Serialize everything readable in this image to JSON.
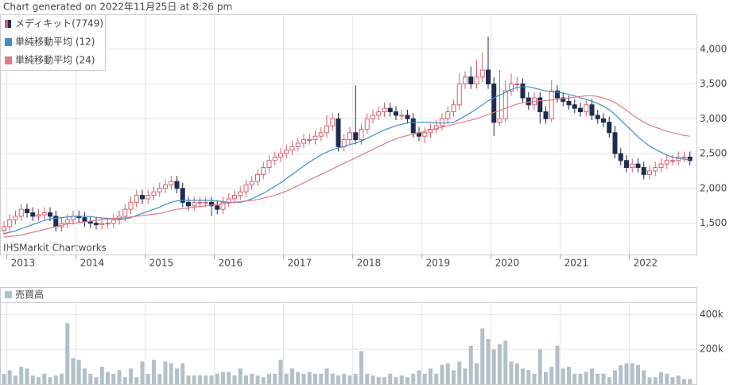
{
  "chart_data": [
    {
      "type": "candlestick",
      "title": "Chart generated on 2022年11月25日 at 8:26 pm",
      "name": "メディキット(7749)",
      "annotation": "IHSMarkit Chartworks",
      "up_color": "#d5606d",
      "down_color": "#1f2c4f",
      "categories": [
        null,
        "2013",
        null,
        null,
        null,
        null,
        null,
        null,
        null,
        null,
        null,
        null,
        null,
        "2014",
        null,
        null,
        null,
        null,
        null,
        null,
        null,
        null,
        null,
        null,
        null,
        "2015",
        null,
        null,
        null,
        null,
        null,
        null,
        null,
        null,
        null,
        null,
        null,
        "2016",
        null,
        null,
        null,
        null,
        null,
        null,
        null,
        null,
        null,
        null,
        null,
        "2017",
        null,
        null,
        null,
        null,
        null,
        null,
        null,
        null,
        null,
        null,
        null,
        "2018",
        null,
        null,
        null,
        null,
        null,
        null,
        null,
        null,
        null,
        null,
        null,
        "2019",
        null,
        null,
        null,
        null,
        null,
        null,
        null,
        null,
        null,
        null,
        null,
        "2020",
        null,
        null,
        null,
        null,
        null,
        null,
        null,
        null,
        null,
        null,
        null,
        "2021",
        null,
        null,
        null,
        null,
        null,
        null,
        null,
        null,
        null,
        null,
        null,
        "2022",
        null,
        null,
        null,
        null,
        null,
        null,
        null,
        null,
        null,
        null
      ],
      "open": [
        1400,
        1450,
        1550,
        1600,
        1700,
        1650,
        1600,
        1620,
        1650,
        1600,
        1450,
        1500,
        1550,
        1600,
        1580,
        1520,
        1500,
        1480,
        1500,
        1500,
        1550,
        1600,
        1700,
        1800,
        1900,
        1850,
        1900,
        1950,
        2000,
        2050,
        2100,
        2000,
        1800,
        1750,
        1800,
        1800,
        1800,
        1750,
        1700,
        1800,
        1850,
        1900,
        1950,
        2050,
        2100,
        2200,
        2300,
        2400,
        2450,
        2500,
        2550,
        2600,
        2650,
        2700,
        2700,
        2750,
        2800,
        2900,
        3000,
        2600,
        2700,
        2800,
        2700,
        2850,
        3000,
        3050,
        3100,
        3150,
        3100,
        3050,
        3050,
        3000,
        2800,
        2750,
        2800,
        2850,
        2900,
        3000,
        3100,
        3200,
        3500,
        3600,
        3500,
        3600,
        3700,
        3500,
        2950,
        3000,
        3400,
        3500,
        3500,
        3300,
        3200,
        3300,
        3100,
        3000,
        3400,
        3300,
        3250,
        3200,
        3150,
        3100,
        3200,
        3050,
        3000,
        2950,
        2800,
        2500,
        2400,
        2300,
        2350,
        2300,
        2200,
        2250,
        2300,
        2350,
        2400,
        2400,
        2450,
        2450
      ],
      "high": [
        1530,
        1630,
        1680,
        1780,
        1780,
        1730,
        1700,
        1730,
        1730,
        1680,
        1580,
        1630,
        1680,
        1680,
        1660,
        1600,
        1580,
        1580,
        1580,
        1630,
        1680,
        1780,
        1880,
        1980,
        1980,
        1980,
        2030,
        2080,
        2130,
        2180,
        2180,
        2080,
        1880,
        1880,
        1880,
        1880,
        1880,
        1830,
        1880,
        1930,
        1980,
        2030,
        2130,
        2180,
        2280,
        2380,
        2480,
        2530,
        2580,
        2630,
        2680,
        2730,
        2780,
        2780,
        2830,
        2880,
        3050,
        3080,
        3080,
        2780,
        2880,
        3480,
        2930,
        3080,
        3130,
        3180,
        3230,
        3230,
        3180,
        3130,
        3130,
        3080,
        2880,
        2880,
        2930,
        2980,
        3080,
        3180,
        3280,
        3650,
        3680,
        3750,
        3850,
        3950,
        4180,
        3600,
        3700,
        3550,
        3650,
        3600,
        3580,
        3380,
        3380,
        3380,
        3180,
        3550,
        3480,
        3380,
        3330,
        3280,
        3230,
        3280,
        3280,
        3130,
        3080,
        3030,
        2900,
        2580,
        2480,
        2430,
        2430,
        2380,
        2330,
        2380,
        2430,
        2480,
        2480,
        2530,
        2530,
        2530
      ],
      "low": [
        1330,
        1380,
        1480,
        1530,
        1580,
        1530,
        1530,
        1550,
        1530,
        1380,
        1380,
        1430,
        1480,
        1510,
        1450,
        1430,
        1410,
        1410,
        1430,
        1430,
        1480,
        1530,
        1630,
        1730,
        1780,
        1780,
        1830,
        1880,
        1930,
        1980,
        1930,
        1730,
        1680,
        1680,
        1730,
        1730,
        1600,
        1630,
        1630,
        1730,
        1780,
        1830,
        1880,
        1980,
        2030,
        2130,
        2230,
        2330,
        2380,
        2430,
        2480,
        2530,
        2580,
        2630,
        2630,
        2680,
        2730,
        2830,
        2530,
        2530,
        2630,
        2630,
        2630,
        2780,
        2930,
        2980,
        3030,
        3030,
        2980,
        2980,
        2930,
        2730,
        2680,
        2650,
        2730,
        2780,
        2830,
        2930,
        3030,
        3130,
        3430,
        3430,
        3430,
        3530,
        3430,
        2750,
        2900,
        2950,
        3330,
        3400,
        3230,
        3130,
        3130,
        2930,
        2930,
        2950,
        3230,
        3180,
        3130,
        3080,
        3030,
        3030,
        2980,
        2930,
        2880,
        2730,
        2430,
        2330,
        2230,
        2230,
        2230,
        2130,
        2130,
        2180,
        2230,
        2280,
        2330,
        2330,
        2380,
        2330
      ],
      "close": [
        1450,
        1550,
        1600,
        1700,
        1650,
        1600,
        1620,
        1650,
        1600,
        1450,
        1500,
        1550,
        1600,
        1580,
        1520,
        1500,
        1480,
        1500,
        1500,
        1550,
        1600,
        1700,
        1800,
        1900,
        1850,
        1900,
        1950,
        2000,
        2050,
        2100,
        2000,
        1800,
        1750,
        1800,
        1800,
        1800,
        1750,
        1700,
        1800,
        1850,
        1900,
        1950,
        2050,
        2100,
        2200,
        2300,
        2400,
        2450,
        2500,
        2550,
        2600,
        2650,
        2700,
        2700,
        2750,
        2800,
        2900,
        3000,
        2600,
        2700,
        2800,
        2700,
        2850,
        3000,
        3050,
        3100,
        3150,
        3100,
        3050,
        3050,
        3000,
        2800,
        2750,
        2800,
        2850,
        2900,
        3000,
        3100,
        3200,
        3500,
        3600,
        3500,
        3600,
        3700,
        3500,
        2950,
        3000,
        3400,
        3500,
        3500,
        3300,
        3200,
        3300,
        3100,
        3000,
        3400,
        3300,
        3250,
        3200,
        3150,
        3100,
        3200,
        3050,
        3000,
        2950,
        2800,
        2500,
        2400,
        2300,
        2350,
        2300,
        2200,
        2250,
        2300,
        2350,
        2400,
        2400,
        2450,
        2450,
        2400
      ],
      "series": [
        {
          "name": "単純移動平均 (12)",
          "color": "#3f8fc7",
          "values": [
            1350,
            1370,
            1390,
            1420,
            1450,
            1480,
            1510,
            1540,
            1560,
            1570,
            1580,
            1590,
            1600,
            1600,
            1600,
            1595,
            1585,
            1575,
            1570,
            1565,
            1560,
            1560,
            1580,
            1610,
            1640,
            1670,
            1700,
            1730,
            1770,
            1800,
            1820,
            1830,
            1830,
            1830,
            1830,
            1830,
            1830,
            1820,
            1810,
            1800,
            1800,
            1800,
            1820,
            1850,
            1890,
            1930,
            1980,
            2030,
            2080,
            2140,
            2200,
            2260,
            2320,
            2380,
            2430,
            2480,
            2520,
            2560,
            2580,
            2600,
            2630,
            2650,
            2680,
            2720,
            2760,
            2800,
            2840,
            2870,
            2900,
            2920,
            2940,
            2950,
            2950,
            2950,
            2950,
            2940,
            2940,
            2940,
            2950,
            2990,
            3040,
            3090,
            3140,
            3200,
            3260,
            3300,
            3340,
            3380,
            3420,
            3450,
            3460,
            3460,
            3440,
            3420,
            3400,
            3390,
            3380,
            3370,
            3350,
            3330,
            3300,
            3280,
            3250,
            3220,
            3180,
            3130,
            3060,
            2980,
            2900,
            2820,
            2740,
            2670,
            2610,
            2560,
            2520,
            2480,
            2450,
            2430,
            2420,
            2410
          ]
        },
        {
          "name": "単純移動平均 (24)",
          "color": "#e07b8b",
          "values": [
            1300,
            1310,
            1320,
            1330,
            1350,
            1370,
            1390,
            1410,
            1430,
            1450,
            1470,
            1490,
            1500,
            1510,
            1520,
            1530,
            1540,
            1550,
            1560,
            1570,
            1575,
            1580,
            1590,
            1600,
            1610,
            1620,
            1630,
            1640,
            1660,
            1680,
            1700,
            1710,
            1720,
            1730,
            1740,
            1750,
            1760,
            1770,
            1780,
            1790,
            1800,
            1810,
            1820,
            1830,
            1840,
            1860,
            1880,
            1900,
            1930,
            1960,
            2000,
            2040,
            2080,
            2120,
            2160,
            2200,
            2240,
            2280,
            2320,
            2360,
            2400,
            2440,
            2480,
            2520,
            2560,
            2600,
            2640,
            2680,
            2710,
            2740,
            2760,
            2780,
            2800,
            2820,
            2840,
            2860,
            2880,
            2900,
            2920,
            2940,
            2960,
            2980,
            3000,
            3030,
            3060,
            3090,
            3120,
            3150,
            3180,
            3210,
            3230,
            3240,
            3250,
            3260,
            3260,
            3270,
            3280,
            3290,
            3300,
            3310,
            3320,
            3330,
            3330,
            3320,
            3300,
            3270,
            3230,
            3180,
            3120,
            3060,
            3000,
            2950,
            2910,
            2880,
            2850,
            2820,
            2800,
            2780,
            2760,
            2750
          ]
        }
      ],
      "ylim": [
        1050,
        4500
      ],
      "yticks": [
        {
          "value": 1500,
          "label": "1,500"
        },
        {
          "value": 2000,
          "label": "2,000"
        },
        {
          "value": 2500,
          "label": "2,500"
        },
        {
          "value": 3000,
          "label": "3,000"
        },
        {
          "value": 3500,
          "label": "3,500"
        },
        {
          "value": 4000,
          "label": "4,000"
        }
      ],
      "grid": true
    },
    {
      "type": "bar",
      "series": [
        {
          "name": "売買高",
          "color": "#b3c0c8",
          "values": [
            60000,
            80000,
            50000,
            100000,
            90000,
            50000,
            40000,
            60000,
            40000,
            50000,
            60000,
            350000,
            150000,
            140000,
            90000,
            60000,
            40000,
            100000,
            70000,
            60000,
            80000,
            40000,
            90000,
            40000,
            130000,
            60000,
            140000,
            60000,
            130000,
            120000,
            90000,
            120000,
            50000,
            50000,
            50000,
            50000,
            50000,
            60000,
            70000,
            70000,
            50000,
            90000,
            50000,
            60000,
            50000,
            40000,
            60000,
            60000,
            140000,
            60000,
            90000,
            70000,
            60000,
            70000,
            60000,
            60000,
            90000,
            60000,
            50000,
            60000,
            50000,
            60000,
            190000,
            60000,
            50000,
            40000,
            40000,
            60000,
            40000,
            50000,
            40000,
            60000,
            80000,
            60000,
            90000,
            60000,
            110000,
            120000,
            80000,
            130000,
            90000,
            220000,
            120000,
            320000,
            260000,
            200000,
            230000,
            250000,
            130000,
            120000,
            90000,
            80000,
            60000,
            200000,
            70000,
            100000,
            220000,
            90000,
            100000,
            60000,
            60000,
            70000,
            90000,
            60000,
            60000,
            40000,
            80000,
            110000,
            120000,
            120000,
            110000,
            80000,
            40000,
            40000,
            70000,
            60000,
            40000,
            50000,
            30000,
            30000
          ]
        }
      ],
      "ylim": [
        0,
        470000
      ],
      "yticks": [
        {
          "value": 200000,
          "label": "200k"
        },
        {
          "value": 400000,
          "label": "400k"
        }
      ],
      "grid": true
    }
  ]
}
